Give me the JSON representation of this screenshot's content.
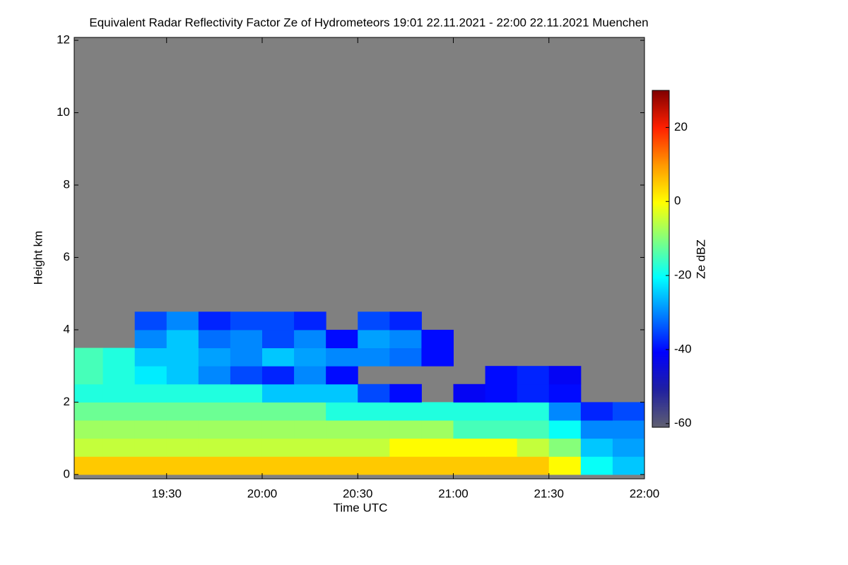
{
  "chart_data": {
    "type": "heatmap",
    "title": "Equivalent Radar Reflectivity Factor Ze of Hydrometeors   19:01 22.11.2021 - 22:00 22.11.2021 Muenchen",
    "xlabel": "Time UTC",
    "ylabel": "Height km",
    "colorbar_label": "Ze dBZ",
    "xlim": [
      1141,
      1320
    ],
    "xticks": [
      {
        "value": 1170,
        "label": "19:30"
      },
      {
        "value": 1200,
        "label": "20:00"
      },
      {
        "value": 1230,
        "label": "20:30"
      },
      {
        "value": 1260,
        "label": "21:00"
      },
      {
        "value": 1290,
        "label": "21:30"
      },
      {
        "value": 1320,
        "label": "22:00"
      }
    ],
    "ylim": [
      -0.12,
      12.08
    ],
    "yticks": [
      0,
      2,
      4,
      6,
      8,
      10,
      12
    ],
    "xbins": [
      1141,
      1150,
      1160,
      1170,
      1180,
      1190,
      1200,
      1210,
      1220,
      1230,
      1240,
      1250,
      1260,
      1270,
      1280,
      1290,
      1300,
      1310,
      1320
    ],
    "ybins": [
      0,
      0.5,
      1,
      1.5,
      2,
      2.5,
      3,
      3.5,
      4,
      4.5
    ],
    "z": [
      [
        5,
        5,
        5,
        5,
        5,
        5,
        5,
        5,
        5,
        5,
        5,
        5,
        5,
        5,
        5,
        0,
        -20,
        -25
      ],
      [
        -5,
        -5,
        -5,
        -5,
        -5,
        -5,
        -5,
        -5,
        -5,
        -5,
        0,
        0,
        0,
        0,
        -5,
        -10,
        -25,
        -28
      ],
      [
        -8,
        -8,
        -8,
        -8,
        -8,
        -8,
        -8,
        -8,
        -8,
        -8,
        -8,
        -8,
        -15,
        -15,
        -15,
        -20,
        -30,
        -30
      ],
      [
        -12,
        -12,
        -12,
        -12,
        -12,
        -12,
        -12,
        -12,
        -18,
        -18,
        -18,
        -18,
        -18,
        -18,
        -18,
        -30,
        -38,
        -35
      ],
      [
        -18,
        -18,
        -18,
        -18,
        -18,
        -18,
        -25,
        -25,
        -25,
        -35,
        -40,
        null,
        -42,
        -40,
        -38,
        -40,
        null,
        null
      ],
      [
        -15,
        -18,
        -22,
        -25,
        -30,
        -35,
        -38,
        -30,
        -40,
        null,
        null,
        null,
        null,
        -40,
        -38,
        -42,
        null,
        null
      ],
      [
        -15,
        -18,
        -25,
        -25,
        -28,
        -30,
        -25,
        -28,
        -30,
        -30,
        -32,
        -40,
        null,
        null,
        null,
        null,
        null,
        null
      ],
      [
        null,
        null,
        -30,
        -25,
        -32,
        -30,
        -35,
        -30,
        -40,
        -28,
        -30,
        -40,
        null,
        null,
        null,
        null,
        null,
        null
      ],
      [
        null,
        null,
        -35,
        -30,
        -38,
        -35,
        -35,
        -38,
        null,
        -35,
        -38,
        null,
        null,
        null,
        null,
        null,
        null,
        null
      ]
    ],
    "zlim": [
      -61,
      30
    ],
    "zticks": [
      -60,
      -40,
      -20,
      0,
      20
    ],
    "colormap": [
      "#606070",
      "#2020a0",
      "#0000ff",
      "#0080ff",
      "#00ffff",
      "#80ff80",
      "#ffff00",
      "#ff9900",
      "#ff2000",
      "#800000"
    ],
    "background_color": "#808080"
  }
}
